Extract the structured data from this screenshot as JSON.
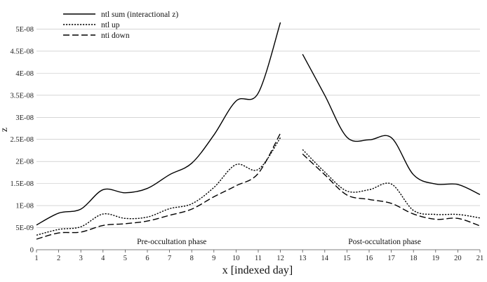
{
  "chart_data": {
    "type": "line",
    "title": "",
    "xlabel": "x [indexed day]",
    "ylabel": "z",
    "xlim": [
      1,
      21
    ],
    "ylim": [
      0,
      5.5e-08
    ],
    "x_ticks": [
      1,
      2,
      3,
      4,
      5,
      6,
      7,
      8,
      9,
      10,
      11,
      12,
      13,
      14,
      15,
      16,
      17,
      18,
      19,
      20,
      21
    ],
    "y_ticks": [
      {
        "value": 0,
        "label": "0"
      },
      {
        "value": 5e-09,
        "label": "5E-09"
      },
      {
        "value": 1e-08,
        "label": "1E-08"
      },
      {
        "value": 1.5e-08,
        "label": "1.5E-08"
      },
      {
        "value": 2e-08,
        "label": "2E-08"
      },
      {
        "value": 2.5e-08,
        "label": "2.5E-08"
      },
      {
        "value": 3e-08,
        "label": "3E-08"
      },
      {
        "value": 3.5e-08,
        "label": "3.5E-08"
      },
      {
        "value": 4e-08,
        "label": "4E-08"
      },
      {
        "value": 4.5e-08,
        "label": "4.5E-08"
      },
      {
        "value": 5e-08,
        "label": "5E-08"
      }
    ],
    "grid": "horizontal",
    "legend_position": "top-left",
    "gap_between": [
      12,
      13
    ],
    "series": [
      {
        "name": "ntl sum (interactional z)",
        "style": "solid",
        "x": [
          1,
          2,
          3,
          4,
          5,
          6,
          7,
          8,
          9,
          10,
          11,
          12,
          13,
          14,
          15,
          16,
          17,
          18,
          19,
          20,
          21
        ],
        "values": [
          5.6e-09,
          8.3e-09,
          9.2e-09,
          1.36e-08,
          1.29e-08,
          1.39e-08,
          1.7e-08,
          1.96e-08,
          2.6e-08,
          3.37e-08,
          3.55e-08,
          5.15e-08,
          4.43e-08,
          3.5e-08,
          2.55e-08,
          2.49e-08,
          2.54e-08,
          1.7e-08,
          1.49e-08,
          1.48e-08,
          1.25e-08
        ]
      },
      {
        "name": "ntl up",
        "style": "dotted",
        "x": [
          1,
          2,
          3,
          4,
          5,
          6,
          7,
          8,
          9,
          10,
          11,
          12,
          13,
          14,
          15,
          16,
          17,
          18,
          19,
          20,
          21
        ],
        "values": [
          3.3e-09,
          4.6e-09,
          5.2e-09,
          8.1e-09,
          7.1e-09,
          7.4e-09,
          9.3e-09,
          1.04e-08,
          1.41e-08,
          1.93e-08,
          1.82e-08,
          2.54e-08,
          2.27e-08,
          1.76e-08,
          1.33e-08,
          1.36e-08,
          1.49e-08,
          8.9e-09,
          8e-09,
          8e-09,
          7.2e-09
        ]
      },
      {
        "name": "nti down",
        "style": "dashed",
        "x": [
          1,
          2,
          3,
          4,
          5,
          6,
          7,
          8,
          9,
          10,
          11,
          12,
          13,
          14,
          15,
          16,
          17,
          18,
          19,
          20,
          21
        ],
        "values": [
          2.4e-09,
          3.8e-09,
          4e-09,
          5.5e-09,
          5.9e-09,
          6.5e-09,
          7.8e-09,
          9.2e-09,
          1.2e-08,
          1.45e-08,
          1.73e-08,
          2.64e-08,
          2.17e-08,
          1.7e-08,
          1.24e-08,
          1.14e-08,
          1.05e-08,
          8.1e-09,
          6.9e-09,
          7.1e-09,
          5.4e-09
        ]
      }
    ],
    "annotations": [
      {
        "text": "Pre-occultation phase",
        "x": 7.1,
        "y": 1.3e-09
      },
      {
        "text": "Post-occultation phase",
        "x": 16.7,
        "y": 1.3e-09
      }
    ]
  }
}
